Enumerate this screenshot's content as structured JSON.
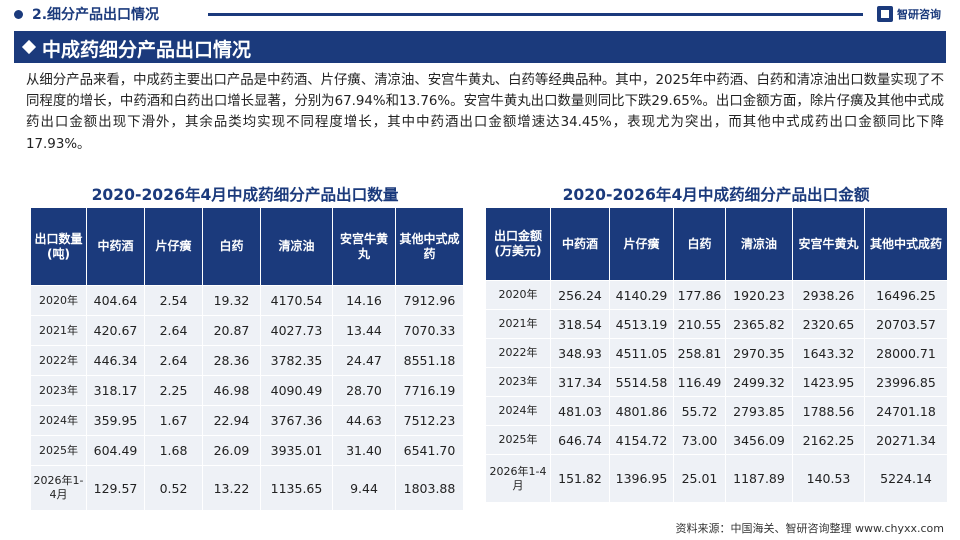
{
  "header": {
    "section_title": "2.细分产品出口情况",
    "logo_text": "智研咨询"
  },
  "banner": {
    "title": "中成药细分产品出口情况"
  },
  "intro": "从细分产品来看，中成药主要出口产品是中药酒、片仔癀、清凉油、安宫牛黄丸、白药等经典品种。其中，2025年中药酒、白药和清凉油出口数量实现了不同程度的增长，中药酒和白药出口增长显著，分别为67.94%和13.76%。安宫牛黄丸出口数量则同比下跌29.65%。出口金额方面，除片仔癀及其他中式成药出口金额出现下滑外，其余品类均实现不同程度增长，其中中药酒出口金额增速达34.45%，表现尤为突出，而其他中式成药出口金额同比下降17.93%。",
  "quantity_table": {
    "title": "2020-2026年4月中成药细分产品出口数量",
    "headers": [
      "出口数量(吨)",
      "中药酒",
      "片仔癀",
      "白药",
      "清凉油",
      "安宫牛黄丸",
      "其他中式成药"
    ],
    "rows": [
      [
        "2020年",
        "404.64",
        "2.54",
        "19.32",
        "4170.54",
        "14.16",
        "7912.96"
      ],
      [
        "2021年",
        "420.67",
        "2.64",
        "20.87",
        "4027.73",
        "13.44",
        "7070.33"
      ],
      [
        "2022年",
        "446.34",
        "2.64",
        "28.36",
        "3782.35",
        "24.47",
        "8551.18"
      ],
      [
        "2023年",
        "318.17",
        "2.25",
        "46.98",
        "4090.49",
        "28.70",
        "7716.19"
      ],
      [
        "2024年",
        "359.95",
        "1.67",
        "22.94",
        "3767.36",
        "44.63",
        "7512.23"
      ],
      [
        "2025年",
        "604.49",
        "1.68",
        "26.09",
        "3935.01",
        "31.40",
        "6541.70"
      ],
      [
        "2026年1-4月",
        "129.57",
        "0.52",
        "13.22",
        "1135.65",
        "9.44",
        "1803.88"
      ]
    ]
  },
  "amount_table": {
    "title": "2020-2026年4月中成药细分产品出口金额",
    "headers": [
      "出口金额(万美元)",
      "中药酒",
      "片仔癀",
      "白药",
      "清凉油",
      "安宫牛黄丸",
      "其他中式成药"
    ],
    "rows": [
      [
        "2020年",
        "256.24",
        "4140.29",
        "177.86",
        "1920.23",
        "2938.26",
        "16496.25"
      ],
      [
        "2021年",
        "318.54",
        "4513.19",
        "210.55",
        "2365.82",
        "2320.65",
        "20703.57"
      ],
      [
        "2022年",
        "348.93",
        "4511.05",
        "258.81",
        "2970.35",
        "1643.32",
        "28000.71"
      ],
      [
        "2023年",
        "317.34",
        "5514.58",
        "116.49",
        "2499.32",
        "1423.95",
        "23996.85"
      ],
      [
        "2024年",
        "481.03",
        "4801.86",
        "55.72",
        "2793.85",
        "1788.56",
        "24701.18"
      ],
      [
        "2025年",
        "646.74",
        "4154.72",
        "73.00",
        "3456.09",
        "2162.25",
        "20271.34"
      ],
      [
        "2026年1-4月",
        "151.82",
        "1396.95",
        "25.01",
        "1187.89",
        "140.53",
        "5224.14"
      ]
    ]
  },
  "footnote": "资料来源：中国海关、智研咨询整理  www.chyxx.com",
  "colors": {
    "primary": "#1b3a7c",
    "cell_bg": "#eef1f6"
  }
}
